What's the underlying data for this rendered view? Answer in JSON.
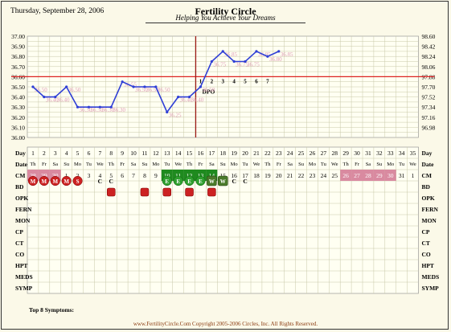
{
  "header": {
    "date": "Thursday, September 28, 2006",
    "title": "Fertility Circle",
    "subtitle": "Helping You Achieve Your Dreams"
  },
  "footer": {
    "top_symptoms": "Top 8 Symptoms:",
    "copyright": "www.FertilityCircle.Com Copyright 2005-2006 Circles, Inc. All Rights Reserved."
  },
  "chart_data": {
    "type": "line",
    "celsius_ticks": [
      "37.00",
      "36.90",
      "36.80",
      "36.70",
      "36.60",
      "36.50",
      "36.40",
      "36.30",
      "36.20",
      "36.10",
      "36.00"
    ],
    "fahrenheit_ticks": [
      "98.60",
      "98.42",
      "98.24",
      "98.06",
      "97.88",
      "97.70",
      "97.52",
      "97.34",
      "97.16",
      "96.98"
    ],
    "ylim": [
      36.0,
      37.0
    ],
    "coverline": 36.6,
    "ovulation_day": 15,
    "dpo_label": "DPO",
    "dpo_numbers": [
      "1",
      "2",
      "3",
      "4",
      "5",
      "6",
      "7"
    ],
    "temps": [
      {
        "day": 1,
        "value": 36.5,
        "label": "36.50"
      },
      {
        "day": 2,
        "value": 36.4,
        "label": "36.40"
      },
      {
        "day": 3,
        "value": 36.4,
        "label": "36.40"
      },
      {
        "day": 4,
        "value": 36.5,
        "label": "36.50"
      },
      {
        "day": 5,
        "value": 36.3,
        "label": "36.30"
      },
      {
        "day": 6,
        "value": 36.3,
        "label": "36.30"
      },
      {
        "day": 7,
        "value": 36.3,
        "label": "36.30"
      },
      {
        "day": 8,
        "value": 36.3,
        "label": "36.30"
      },
      {
        "day": 9,
        "value": 36.55,
        "label": "36.55"
      },
      {
        "day": 10,
        "value": 36.5,
        "label": "36.50"
      },
      {
        "day": 11,
        "value": 36.5,
        "label": "36.50"
      },
      {
        "day": 12,
        "value": 36.5,
        "label": "36.50"
      },
      {
        "day": 13,
        "value": 36.25,
        "label": "36.25"
      },
      {
        "day": 14,
        "value": 36.4,
        "label": "36.40"
      },
      {
        "day": 15,
        "value": 36.4,
        "label": "36.40"
      },
      {
        "day": 16,
        "value": 36.5,
        "label": "36.50"
      },
      {
        "day": 17,
        "value": 36.75,
        "label": "36.75"
      },
      {
        "day": 18,
        "value": 36.85,
        "label": "36.85"
      },
      {
        "day": 19,
        "value": 36.75,
        "label": "36.75"
      },
      {
        "day": 20,
        "value": 36.75,
        "label": "36.75"
      },
      {
        "day": 21,
        "value": 36.85,
        "label": "36.85"
      },
      {
        "day": 22,
        "value": 36.8,
        "label": "36.80"
      },
      {
        "day": 23,
        "value": 36.85,
        "label": "36.85"
      }
    ],
    "days": [
      "1",
      "2",
      "3",
      "4",
      "5",
      "6",
      "7",
      "8",
      "9",
      "10",
      "11",
      "12",
      "13",
      "14",
      "15",
      "16",
      "17",
      "18",
      "19",
      "20",
      "21",
      "22",
      "23",
      "24",
      "25",
      "26",
      "27",
      "28",
      "29",
      "30",
      "31",
      "32",
      "33",
      "34",
      "35"
    ],
    "weekdays": [
      "Th",
      "Fr",
      "Sa",
      "Su",
      "Mo",
      "Tu",
      "We",
      "Th",
      "Fr",
      "Sa",
      "Su",
      "Mo",
      "Tu",
      "We",
      "Th",
      "Fr",
      "Sa",
      "Su",
      "Mo",
      "Tu",
      "We",
      "Th",
      "Fr",
      "Sa",
      "Su",
      "Mo",
      "Tu",
      "We",
      "Th",
      "Fr",
      "Sa",
      "Su",
      "Mo",
      "Tu",
      "We"
    ],
    "dates": [
      "28",
      "29",
      "30",
      "1",
      "2",
      "3",
      "4",
      "5",
      "6",
      "7",
      "8",
      "9",
      "10",
      "11",
      "12",
      "13",
      "14",
      "15",
      "16",
      "17",
      "18",
      "19",
      "20",
      "21",
      "22",
      "23",
      "24",
      "25",
      "26",
      "27",
      "28",
      "29",
      "30",
      "31",
      "1"
    ],
    "date_styles": [
      "p",
      "p",
      "p",
      "n",
      "n",
      "n",
      "n",
      "n",
      "n",
      "n",
      "n",
      "n",
      "g",
      "g",
      "g",
      "g",
      "g",
      "n",
      "n",
      "n",
      "n",
      "n",
      "n",
      "n",
      "n",
      "n",
      "n",
      "n",
      "p",
      "p",
      "p",
      "p",
      "p",
      "n",
      "n"
    ],
    "cm": [
      {
        "day": 1,
        "text": "M",
        "kind": "menses"
      },
      {
        "day": 2,
        "text": "M",
        "kind": "menses"
      },
      {
        "day": 3,
        "text": "M",
        "kind": "menses"
      },
      {
        "day": 4,
        "text": "M",
        "kind": "menses"
      },
      {
        "day": 5,
        "text": "S",
        "kind": "menses"
      },
      {
        "day": 7,
        "text": "C",
        "kind": "plain"
      },
      {
        "day": 8,
        "text": "C",
        "kind": "plain"
      },
      {
        "day": 13,
        "text": "E",
        "kind": "egg"
      },
      {
        "day": 14,
        "text": "E",
        "kind": "egg"
      },
      {
        "day": 15,
        "text": "E",
        "kind": "egg"
      },
      {
        "day": 16,
        "text": "E",
        "kind": "egg"
      },
      {
        "day": 17,
        "text": "W",
        "kind": "watery"
      },
      {
        "day": 18,
        "text": "W",
        "kind": "watery"
      },
      {
        "day": 19,
        "text": "C",
        "kind": "plain"
      },
      {
        "day": 20,
        "text": "C",
        "kind": "plain"
      }
    ],
    "bd_days": [
      8,
      11,
      13,
      15,
      17
    ],
    "row_labels": [
      "Day",
      "Date",
      "CM",
      "BD",
      "OPK",
      "FERN",
      "MON",
      "CP",
      "CT",
      "CO",
      "HPT",
      "MEDS",
      "SYMP"
    ],
    "colors": {
      "line": "#2f3fd6",
      "coverline": "#dd2222",
      "ovulation": "#a01818",
      "temp_label": "#e0a0b8",
      "pink_cell": "#d98aa0",
      "green_cell": "#1f8a1f",
      "menses": "#cc2222",
      "egg": "#2e9e2e",
      "watery": "#4a7a2a",
      "grid": "#c8c8a8",
      "bd": "#cc2222"
    }
  }
}
